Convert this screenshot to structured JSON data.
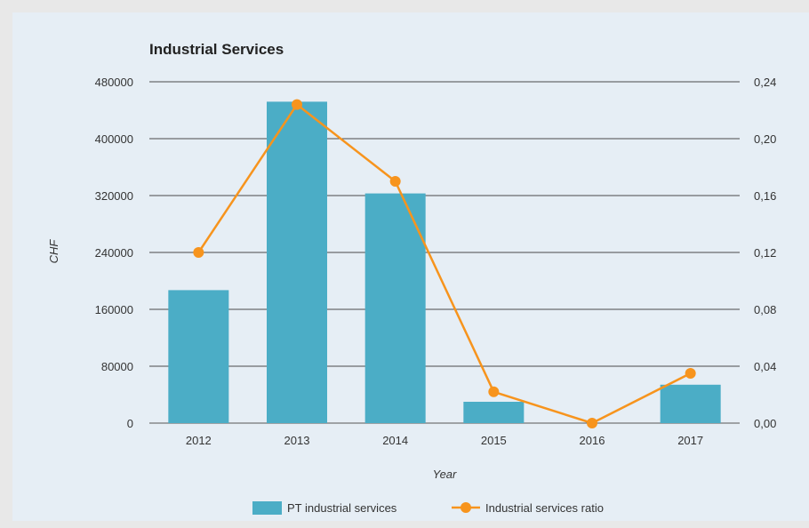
{
  "chart_data": {
    "type": "bar",
    "title": "Industrial Services",
    "xlabel": "Year",
    "ylabel": "CHF",
    "categories": [
      "2012",
      "2013",
      "2014",
      "2015",
      "2016",
      "2017"
    ],
    "series": [
      {
        "name": "PT industrial services",
        "type": "bar",
        "axis": "left",
        "color": "#4badc6",
        "values": [
          187000,
          452000,
          323000,
          30000,
          0,
          54000
        ]
      },
      {
        "name": "Industrial services ratio",
        "type": "line",
        "axis": "right",
        "color": "#f7941d",
        "values": [
          0.12,
          0.224,
          0.17,
          0.022,
          0.0,
          0.035
        ]
      }
    ],
    "ylim": [
      0,
      480000
    ],
    "yticks": [
      "0",
      "80000",
      "160000",
      "240000",
      "320000",
      "400000",
      "480000"
    ],
    "y2lim": [
      0,
      0.24
    ],
    "y2ticks": [
      "0,00",
      "0,04",
      "0,08",
      "0,12",
      "0,16",
      "0,20",
      "0,24"
    ],
    "grid": true,
    "legend_position": "bottom"
  }
}
